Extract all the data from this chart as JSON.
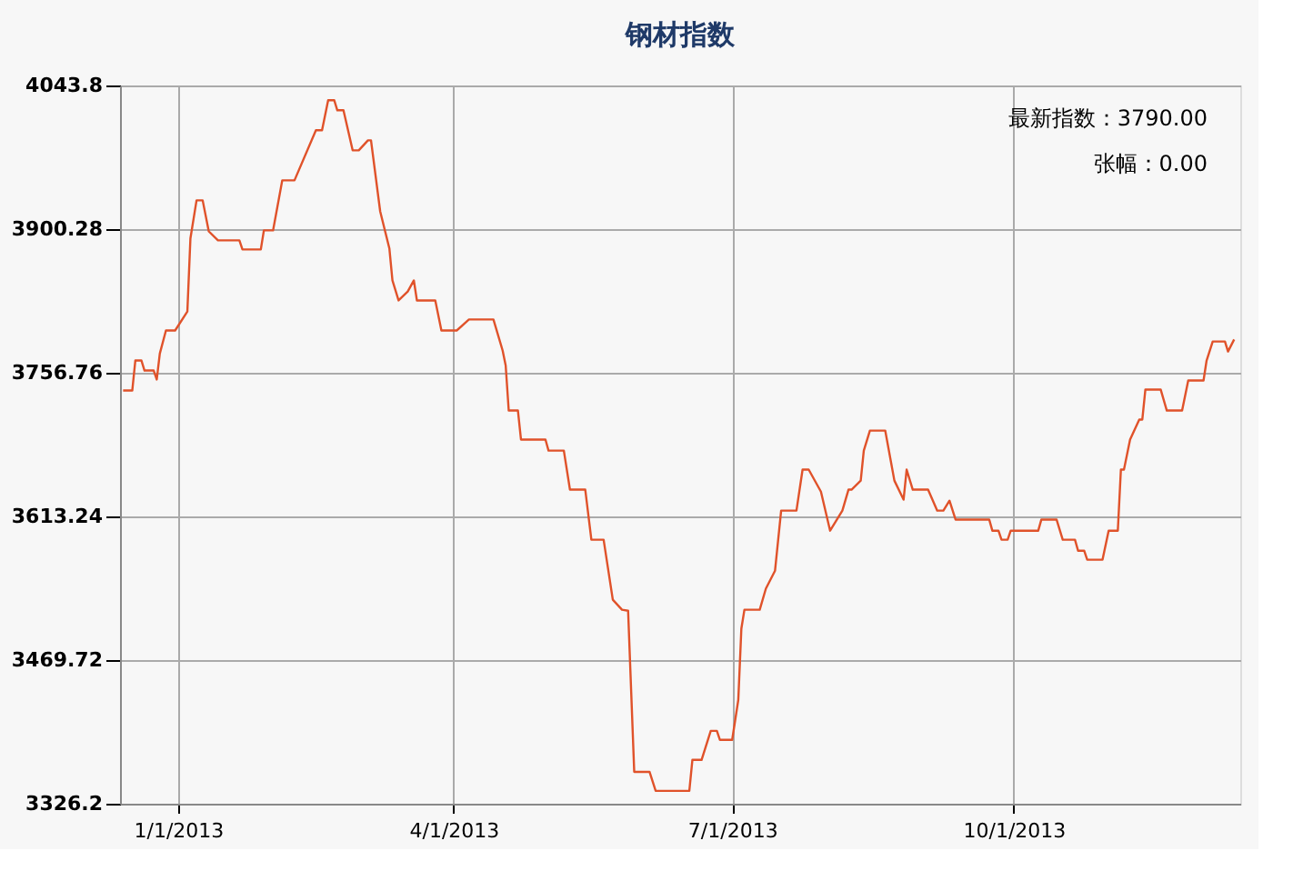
{
  "chart_data": {
    "type": "line",
    "title": "钢材指数",
    "x": [
      "2012-12-14",
      "2012-12-17",
      "2012-12-18",
      "2012-12-20",
      "2012-12-21",
      "2012-12-24",
      "2012-12-25",
      "2012-12-26",
      "2012-12-28",
      "2012-12-31",
      "2013-01-04",
      "2013-01-05",
      "2013-01-07",
      "2013-01-09",
      "2013-01-11",
      "2013-01-14",
      "2013-01-21",
      "2013-01-22",
      "2013-01-28",
      "2013-01-29",
      "2013-02-01",
      "2013-02-04",
      "2013-02-08",
      "2013-02-15",
      "2013-02-17",
      "2013-02-19",
      "2013-02-21",
      "2013-02-22",
      "2013-02-24",
      "2013-02-27",
      "2013-03-01",
      "2013-03-04",
      "2013-03-05",
      "2013-03-08",
      "2013-03-11",
      "2013-03-12",
      "2013-03-14",
      "2013-03-17",
      "2013-03-19",
      "2013-03-20",
      "2013-03-26",
      "2013-03-28",
      "2013-04-02",
      "2013-04-06",
      "2013-04-14",
      "2013-04-17",
      "2013-04-18",
      "2013-04-19",
      "2013-04-22",
      "2013-04-23",
      "2013-05-01",
      "2013-05-02",
      "2013-05-07",
      "2013-05-09",
      "2013-05-14",
      "2013-05-16",
      "2013-05-20",
      "2013-05-23",
      "2013-05-26",
      "2013-05-28",
      "2013-05-30",
      "2013-06-04",
      "2013-06-06",
      "2013-06-17",
      "2013-06-18",
      "2013-06-21",
      "2013-06-24",
      "2013-06-26",
      "2013-06-27",
      "2013-07-01",
      "2013-07-03",
      "2013-07-04",
      "2013-07-05",
      "2013-07-10",
      "2013-07-12",
      "2013-07-15",
      "2013-07-17",
      "2013-07-22",
      "2013-07-24",
      "2013-07-26",
      "2013-07-30",
      "2013-08-02",
      "2013-08-06",
      "2013-08-08",
      "2013-08-09",
      "2013-08-12",
      "2013-08-13",
      "2013-08-15",
      "2013-08-20",
      "2013-08-23",
      "2013-08-26",
      "2013-08-27",
      "2013-08-29",
      "2013-09-03",
      "2013-09-06",
      "2013-09-08",
      "2013-09-10",
      "2013-09-12",
      "2013-09-23",
      "2013-09-24",
      "2013-09-26",
      "2013-09-27",
      "2013-09-29",
      "2013-09-30",
      "2013-10-09",
      "2013-10-10",
      "2013-10-15",
      "2013-10-17",
      "2013-10-21",
      "2013-10-22",
      "2013-10-24",
      "2013-10-25",
      "2013-10-30",
      "2013-11-01",
      "2013-11-04",
      "2013-11-05",
      "2013-11-06",
      "2013-11-08",
      "2013-11-11",
      "2013-11-12",
      "2013-11-13",
      "2013-11-18",
      "2013-11-20",
      "2013-11-25",
      "2013-11-27",
      "2013-12-02",
      "2013-12-03",
      "2013-12-05",
      "2013-12-09",
      "2013-12-10",
      "2013-12-12"
    ],
    "series": [
      {
        "color": "#e0522a",
        "values": [
          3739,
          3739,
          3769,
          3769,
          3759,
          3759,
          3750,
          3776,
          3799,
          3799,
          3818,
          3891,
          3929,
          3929,
          3898,
          3889,
          3889,
          3880,
          3880,
          3899,
          3899,
          3949,
          3949,
          3999,
          3999,
          4029,
          4029,
          4019,
          4019,
          3979,
          3979,
          3989,
          3989,
          3918,
          3881,
          3849,
          3829,
          3838,
          3849,
          3829,
          3829,
          3799,
          3799,
          3810,
          3810,
          3779,
          3764,
          3719,
          3719,
          3690,
          3690,
          3679,
          3679,
          3640,
          3640,
          3590,
          3590,
          3530,
          3520,
          3519,
          3358,
          3358,
          3339,
          3339,
          3370,
          3370,
          3399,
          3399,
          3390,
          3390,
          3430,
          3501,
          3520,
          3520,
          3541,
          3559,
          3619,
          3619,
          3660,
          3660,
          3638,
          3599,
          3619,
          3640,
          3640,
          3649,
          3679,
          3699,
          3699,
          3649,
          3630,
          3660,
          3640,
          3640,
          3619,
          3619,
          3629,
          3610,
          3610,
          3599,
          3599,
          3590,
          3590,
          3599,
          3599,
          3610,
          3610,
          3590,
          3590,
          3579,
          3579,
          3570,
          3570,
          3599,
          3599,
          3660,
          3660,
          3690,
          3710,
          3710,
          3740,
          3740,
          3719,
          3719,
          3749,
          3749,
          3769,
          3788,
          3788,
          3778,
          3790
        ]
      }
    ],
    "xlim": [
      "2012-12-13",
      "2013-12-14"
    ],
    "xticks": [
      {
        "value": "2013-01-01",
        "label": "1/1/2013"
      },
      {
        "value": "2013-04-01",
        "label": "4/1/2013"
      },
      {
        "value": "2013-07-01",
        "label": "7/1/2013"
      },
      {
        "value": "2013-10-01",
        "label": "10/1/2013"
      }
    ],
    "ylim": [
      3326.2,
      4043.8
    ],
    "yticks": [
      3326.2,
      3469.72,
      3613.24,
      3756.76,
      3900.28,
      4043.8
    ],
    "grid": true,
    "annotations": [
      "最新指数：3790.00",
      "张幅：0.00"
    ]
  }
}
